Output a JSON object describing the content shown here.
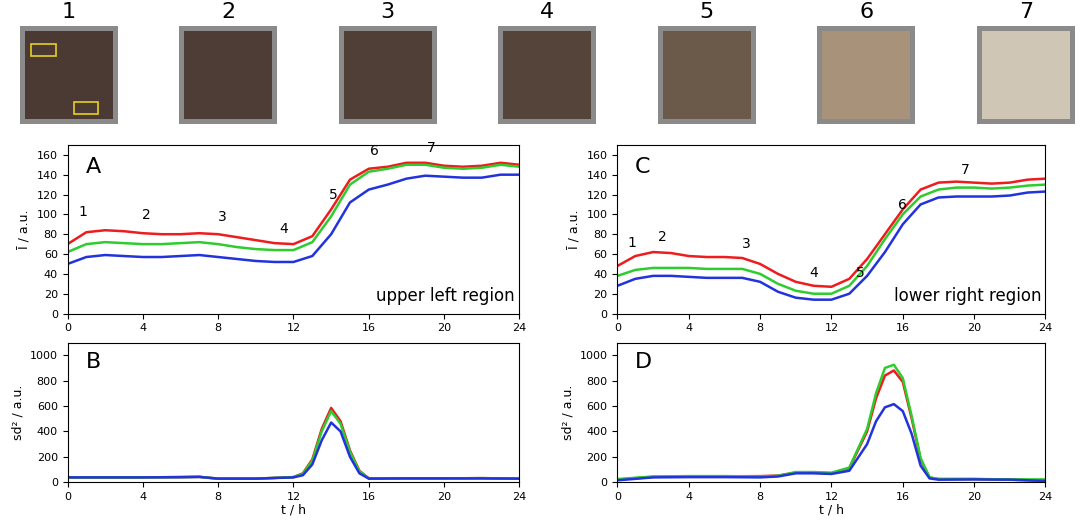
{
  "photos": {
    "labels": [
      "1",
      "2",
      "3",
      "4",
      "5",
      "6",
      "7"
    ]
  },
  "chart_data": [
    {
      "type": "line",
      "label": "A",
      "note": "upper left region",
      "ylabel": "Ī / a.u.",
      "x": [
        0,
        1,
        2,
        3,
        4,
        5,
        6,
        7,
        8,
        9,
        10,
        11,
        12,
        13,
        14,
        15,
        16,
        17,
        18,
        19,
        20,
        21,
        22,
        23,
        24
      ],
      "series": [
        {
          "color": "#ee1c1c",
          "values": [
            70,
            82,
            84,
            83,
            81,
            80,
            80,
            81,
            80,
            77,
            74,
            71,
            70,
            78,
            105,
            135,
            146,
            148,
            152,
            152,
            149,
            148,
            149,
            152,
            150
          ]
        },
        {
          "color": "#2ecc2e",
          "values": [
            62,
            70,
            72,
            71,
            70,
            70,
            71,
            72,
            70,
            67,
            65,
            64,
            64,
            72,
            98,
            130,
            143,
            146,
            150,
            150,
            147,
            146,
            147,
            150,
            148
          ]
        },
        {
          "color": "#2233dd",
          "values": [
            50,
            57,
            59,
            58,
            57,
            57,
            58,
            59,
            57,
            55,
            53,
            52,
            52,
            58,
            80,
            112,
            125,
            130,
            136,
            139,
            138,
            137,
            137,
            140,
            140
          ]
        }
      ],
      "annotations": [
        {
          "text": "1",
          "x": 0.8,
          "y": 95
        },
        {
          "text": "2",
          "x": 4.2,
          "y": 92
        },
        {
          "text": "3",
          "x": 8.2,
          "y": 90
        },
        {
          "text": "4",
          "x": 11.5,
          "y": 78
        },
        {
          "text": "5",
          "x": 14.1,
          "y": 112
        },
        {
          "text": "6",
          "x": 16.3,
          "y": 157
        },
        {
          "text": "7",
          "x": 19.3,
          "y": 160
        }
      ],
      "xlim": [
        0,
        24
      ],
      "xticks": [
        0,
        4,
        8,
        12,
        16,
        20,
        24
      ],
      "ylim": [
        0,
        170
      ],
      "yticks": [
        0,
        20,
        40,
        60,
        80,
        100,
        120,
        140,
        160
      ]
    },
    {
      "type": "line",
      "label": "B",
      "ylabel": "sd² / a.u.",
      "xlabel": "t / h",
      "x": [
        0,
        2,
        4,
        6,
        7,
        8,
        10,
        12,
        12.5,
        13,
        13.5,
        14,
        14.5,
        15,
        15.5,
        16,
        18,
        20,
        22,
        24
      ],
      "series": [
        {
          "color": "#ee1c1c",
          "values": [
            38,
            38,
            38,
            40,
            42,
            28,
            28,
            40,
            70,
            180,
            420,
            585,
            480,
            250,
            90,
            30,
            30,
            30,
            32,
            28
          ]
        },
        {
          "color": "#2ecc2e",
          "values": [
            38,
            38,
            38,
            40,
            42,
            28,
            28,
            40,
            65,
            170,
            400,
            560,
            460,
            240,
            85,
            30,
            30,
            30,
            32,
            28
          ]
        },
        {
          "color": "#2233dd",
          "values": [
            38,
            38,
            38,
            40,
            42,
            28,
            28,
            38,
            55,
            140,
            330,
            470,
            400,
            200,
            70,
            28,
            30,
            30,
            30,
            28
          ]
        }
      ],
      "xlim": [
        0,
        24
      ],
      "xticks": [
        0,
        4,
        8,
        12,
        16,
        20,
        24
      ],
      "ylim": [
        0,
        1100
      ],
      "yticks": [
        0,
        200,
        400,
        600,
        800,
        1000
      ]
    },
    {
      "type": "line",
      "label": "C",
      "note": "lower right region",
      "ylabel": "Ī / a.u.",
      "x": [
        0,
        1,
        2,
        3,
        4,
        5,
        6,
        7,
        8,
        9,
        10,
        11,
        12,
        13,
        14,
        15,
        16,
        17,
        18,
        19,
        20,
        21,
        22,
        23,
        24
      ],
      "series": [
        {
          "color": "#ee1c1c",
          "values": [
            48,
            58,
            62,
            61,
            58,
            57,
            57,
            56,
            50,
            40,
            32,
            28,
            27,
            35,
            55,
            80,
            105,
            125,
            132,
            133,
            132,
            131,
            132,
            135,
            136
          ]
        },
        {
          "color": "#2ecc2e",
          "values": [
            38,
            44,
            46,
            46,
            46,
            45,
            45,
            45,
            40,
            30,
            23,
            20,
            20,
            28,
            48,
            75,
            100,
            118,
            125,
            127,
            127,
            126,
            127,
            129,
            130
          ]
        },
        {
          "color": "#2233dd",
          "values": [
            28,
            35,
            38,
            38,
            37,
            36,
            36,
            36,
            32,
            22,
            16,
            14,
            14,
            20,
            38,
            62,
            90,
            110,
            117,
            118,
            118,
            118,
            119,
            122,
            123
          ]
        }
      ],
      "annotations": [
        {
          "text": "1",
          "x": 0.8,
          "y": 64
        },
        {
          "text": "2",
          "x": 2.5,
          "y": 70
        },
        {
          "text": "3",
          "x": 7.2,
          "y": 63
        },
        {
          "text": "4",
          "x": 11,
          "y": 34
        },
        {
          "text": "5",
          "x": 13.6,
          "y": 34
        },
        {
          "text": "6",
          "x": 16,
          "y": 102
        },
        {
          "text": "7",
          "x": 19.5,
          "y": 138
        }
      ],
      "xlim": [
        0,
        24
      ],
      "xticks": [
        0,
        4,
        8,
        12,
        16,
        20,
        24
      ],
      "ylim": [
        0,
        170
      ],
      "yticks": [
        0,
        20,
        40,
        60,
        80,
        100,
        120,
        140,
        160
      ]
    },
    {
      "type": "line",
      "label": "D",
      "ylabel": "sd² / a.u.",
      "xlabel": "t / h",
      "x": [
        0,
        2,
        4,
        6,
        8,
        9,
        10,
        11,
        12,
        13,
        14,
        14.5,
        15,
        15.5,
        16,
        16.5,
        17,
        17.5,
        18,
        20,
        22,
        24
      ],
      "series": [
        {
          "color": "#ee1c1c",
          "values": [
            20,
            42,
            46,
            46,
            48,
            52,
            75,
            75,
            70,
            110,
            400,
            660,
            840,
            880,
            790,
            500,
            180,
            35,
            25,
            25,
            20,
            12
          ]
        },
        {
          "color": "#2ecc2e",
          "values": [
            25,
            45,
            48,
            48,
            45,
            50,
            80,
            80,
            75,
            115,
            420,
            700,
            900,
            925,
            820,
            520,
            190,
            40,
            25,
            25,
            22,
            22
          ]
        },
        {
          "color": "#2233dd",
          "values": [
            15,
            38,
            40,
            40,
            38,
            45,
            70,
            70,
            65,
            90,
            300,
            480,
            590,
            615,
            560,
            380,
            130,
            30,
            20,
            22,
            20,
            10
          ]
        }
      ],
      "xlim": [
        0,
        24
      ],
      "xticks": [
        0,
        4,
        8,
        12,
        16,
        20,
        24
      ],
      "ylim": [
        0,
        1100
      ],
      "yticks": [
        0,
        200,
        400,
        600,
        800,
        1000
      ]
    }
  ]
}
